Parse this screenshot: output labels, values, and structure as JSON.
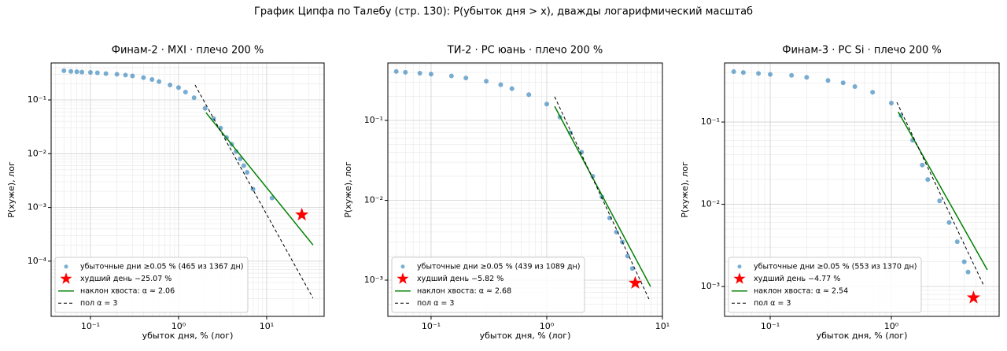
{
  "figure_title": "График Ципфа по Талебу (стр. 130): P(убыток дня > x), дважды логарифмический масштаб",
  "chart_data": [
    {
      "type": "scatter",
      "title": "Финам-2 · MXI · плечо 200 %",
      "xlabel": "убыток дня, % (лог)",
      "ylabel": "P(хуже), лог",
      "xscale": "log",
      "yscale": "log",
      "grid": true,
      "legend": "lower left",
      "xlim": [
        0.0358,
        44.9
      ],
      "ylim": [
        9.4e-06,
        0.488
      ],
      "xticks": [
        {
          "value": 0.1,
          "label": "10⁻¹"
        },
        {
          "value": 1,
          "label": "10⁰"
        },
        {
          "value": 10,
          "label": "10¹"
        }
      ],
      "yticks": [
        {
          "value": 0.1,
          "label": "10⁻¹"
        },
        {
          "value": 0.01,
          "label": "10⁻²"
        },
        {
          "value": 0.001,
          "label": "10⁻³"
        },
        {
          "value": 0.0001,
          "label": "10⁻⁴"
        }
      ],
      "series": [
        {
          "name": "убыточные дни ≥0.05 % (465 из 1367 дн)",
          "color": "#1f77b4",
          "kind": "scatter",
          "x": [
            0.05,
            0.06,
            0.07,
            0.08,
            0.1,
            0.12,
            0.15,
            0.2,
            0.25,
            0.3,
            0.4,
            0.5,
            0.6,
            0.8,
            1.0,
            1.2,
            1.5,
            2,
            2.5,
            3,
            3.5,
            4,
            4.5,
            5,
            5.5,
            6,
            7,
            11.5
          ],
          "values": [
            0.35,
            0.34,
            0.335,
            0.33,
            0.325,
            0.32,
            0.31,
            0.3,
            0.29,
            0.28,
            0.26,
            0.24,
            0.22,
            0.19,
            0.17,
            0.14,
            0.11,
            0.07,
            0.045,
            0.03,
            0.02,
            0.015,
            0.011,
            0.008,
            0.006,
            0.0045,
            0.0022,
            0.0015
          ]
        },
        {
          "name": "худший день −25.07 %",
          "color": "#ff0000",
          "kind": "star",
          "x": [
            25.07
          ],
          "values": [
            0.00073
          ]
        },
        {
          "name": "наклон хвоста: α ≈ 2.06",
          "color": "#008000",
          "kind": "line",
          "x": [
            2.05,
            33.6
          ],
          "values": [
            0.058,
            0.0002
          ]
        },
        {
          "name": "пол α = 3",
          "color": "#000000",
          "kind": "dashed",
          "x": [
            1.54,
            33.6
          ],
          "values": [
            0.19,
            2.05e-05
          ]
        }
      ]
    },
    {
      "type": "scatter",
      "title": "ТИ-2 · PC юань · плечо 200 %",
      "xlabel": "убыток дня, % (лог)",
      "ylabel": "P(хуже), лог",
      "xscale": "log",
      "yscale": "log",
      "grid": true,
      "legend": "lower left",
      "xlim": [
        0.0423,
        10
      ],
      "ylim": [
        0.000352,
        0.524
      ],
      "xticks": [
        {
          "value": 0.1,
          "label": "10⁻¹"
        },
        {
          "value": 1,
          "label": "10⁰"
        },
        {
          "value": 10,
          "label": "10¹"
        }
      ],
      "yticks": [
        {
          "value": 0.1,
          "label": "10⁻¹"
        },
        {
          "value": 0.01,
          "label": "10⁻²"
        },
        {
          "value": 0.001,
          "label": "10⁻³"
        }
      ],
      "series": [
        {
          "name": "убыточные дни ≥0.05 % (439 из 1089 дн)",
          "color": "#1f77b4",
          "kind": "scatter",
          "x": [
            0.05,
            0.06,
            0.08,
            0.1,
            0.15,
            0.2,
            0.3,
            0.4,
            0.5,
            0.7,
            1,
            1.3,
            1.6,
            2,
            2.5,
            3,
            3.5,
            4,
            4.5,
            5,
            5.5
          ],
          "values": [
            0.41,
            0.4,
            0.39,
            0.38,
            0.36,
            0.34,
            0.31,
            0.28,
            0.25,
            0.21,
            0.16,
            0.11,
            0.07,
            0.04,
            0.02,
            0.011,
            0.006,
            0.004,
            0.003,
            0.002,
            0.0014
          ]
        },
        {
          "name": "худший день −5.82 %",
          "color": "#ff0000",
          "kind": "star",
          "x": [
            5.82
          ],
          "values": [
            0.00092
          ]
        },
        {
          "name": "наклон хвоста: α ≈ 2.68",
          "color": "#008000",
          "kind": "line",
          "x": [
            1.17,
            7.9
          ],
          "values": [
            0.15,
            0.00083
          ]
        },
        {
          "name": "пол α = 3",
          "color": "#000000",
          "kind": "dashed",
          "x": [
            1.17,
            7.65
          ],
          "values": [
            0.198,
            0.00058
          ]
        }
      ]
    },
    {
      "type": "scatter",
      "title": "Финам-3 · PC Si · плечо 200 %",
      "xlabel": "убыток дня, % (лог)",
      "ylabel": "P(хуже), лог",
      "xscale": "log",
      "yscale": "log",
      "grid": true,
      "legend": "lower left",
      "xlim": [
        0.042,
        7.76
      ],
      "ylim": [
        0.000433,
        0.523
      ],
      "xticks": [
        {
          "value": 0.1,
          "label": "10⁻¹"
        },
        {
          "value": 1,
          "label": "10⁰"
        }
      ],
      "yticks": [
        {
          "value": 0.1,
          "label": "10⁻¹"
        },
        {
          "value": 0.01,
          "label": "10⁻²"
        },
        {
          "value": 0.001,
          "label": "10⁻³"
        }
      ],
      "series": [
        {
          "name": "убыточные дни ≥0.05 % (553 из 1370 дн)",
          "color": "#1f77b4",
          "kind": "scatter",
          "x": [
            0.05,
            0.06,
            0.08,
            0.1,
            0.15,
            0.2,
            0.3,
            0.4,
            0.5,
            0.7,
            1,
            1.2,
            1.5,
            1.8,
            2,
            2.5,
            3,
            3.5,
            4,
            4.3
          ],
          "values": [
            0.41,
            0.4,
            0.39,
            0.38,
            0.37,
            0.35,
            0.32,
            0.3,
            0.27,
            0.23,
            0.17,
            0.12,
            0.06,
            0.03,
            0.02,
            0.011,
            0.006,
            0.0035,
            0.002,
            0.0015
          ]
        },
        {
          "name": "худший день −4.77 %",
          "color": "#ff0000",
          "kind": "star",
          "x": [
            4.77
          ],
          "values": [
            0.00073
          ]
        },
        {
          "name": "наклон хвоста: α ≈ 2.54",
          "color": "#008000",
          "kind": "line",
          "x": [
            1.14,
            6.2
          ],
          "values": [
            0.133,
            0.00159
          ]
        },
        {
          "name": "пол α = 3",
          "color": "#000000",
          "kind": "dashed",
          "x": [
            1.11,
            5.75
          ],
          "values": [
            0.174,
            0.00105
          ]
        }
      ]
    }
  ]
}
